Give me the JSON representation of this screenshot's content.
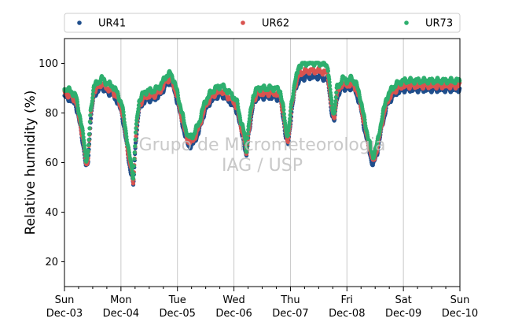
{
  "chart_data": {
    "type": "scatter",
    "title": "",
    "xlabel": "",
    "ylabel": "Relative humidity (%)",
    "ylim": [
      10,
      110
    ],
    "xlim": [
      0,
      7
    ],
    "x_unit": "days from Sun Dec-03 00:00",
    "yticks": [
      20,
      40,
      60,
      80,
      100
    ],
    "xticks": [
      {
        "day": "Sun",
        "date": "Dec-03"
      },
      {
        "day": "Mon",
        "date": "Dec-04"
      },
      {
        "day": "Tue",
        "date": "Dec-05"
      },
      {
        "day": "Wed",
        "date": "Dec-06"
      },
      {
        "day": "Thu",
        "date": "Dec-07"
      },
      {
        "day": "Fri",
        "date": "Dec-08"
      },
      {
        "day": "Sat",
        "date": "Dec-09"
      },
      {
        "day": "Sun",
        "date": "Dec-10"
      }
    ],
    "grid": "vertical at day boundaries",
    "legend_position": "top, horizontal above plot",
    "watermark": [
      "Grupo de Micrometeorologia",
      "IAG / USP"
    ],
    "base_curve": [
      [
        0.0,
        88
      ],
      [
        0.1,
        87
      ],
      [
        0.2,
        85
      ],
      [
        0.28,
        76
      ],
      [
        0.35,
        66
      ],
      [
        0.38,
        59
      ],
      [
        0.42,
        62
      ],
      [
        0.46,
        78
      ],
      [
        0.52,
        89
      ],
      [
        0.58,
        90
      ],
      [
        0.66,
        92
      ],
      [
        0.75,
        90
      ],
      [
        0.85,
        89
      ],
      [
        0.94,
        86
      ],
      [
        1.02,
        81
      ],
      [
        1.08,
        72
      ],
      [
        1.14,
        62
      ],
      [
        1.2,
        55
      ],
      [
        1.22,
        52
      ],
      [
        1.26,
        70
      ],
      [
        1.32,
        83
      ],
      [
        1.4,
        86
      ],
      [
        1.48,
        87
      ],
      [
        1.58,
        87
      ],
      [
        1.7,
        89
      ],
      [
        1.8,
        93
      ],
      [
        1.88,
        94
      ],
      [
        1.94,
        91
      ],
      [
        2.0,
        86
      ],
      [
        2.06,
        80
      ],
      [
        2.14,
        72
      ],
      [
        2.2,
        68
      ],
      [
        2.28,
        69
      ],
      [
        2.38,
        74
      ],
      [
        2.48,
        82
      ],
      [
        2.58,
        86
      ],
      [
        2.68,
        88
      ],
      [
        2.78,
        89
      ],
      [
        2.88,
        87
      ],
      [
        2.98,
        85
      ],
      [
        3.06,
        82
      ],
      [
        3.12,
        75
      ],
      [
        3.18,
        70
      ],
      [
        3.22,
        63
      ],
      [
        3.26,
        73
      ],
      [
        3.34,
        85
      ],
      [
        3.42,
        88
      ],
      [
        3.52,
        88
      ],
      [
        3.62,
        88
      ],
      [
        3.72,
        88
      ],
      [
        3.82,
        87
      ],
      [
        3.88,
        79
      ],
      [
        3.92,
        71
      ],
      [
        3.96,
        69
      ],
      [
        4.02,
        82
      ],
      [
        4.08,
        91
      ],
      [
        4.16,
        96
      ],
      [
        4.3,
        97
      ],
      [
        4.5,
        97
      ],
      [
        4.66,
        96
      ],
      [
        4.7,
        88
      ],
      [
        4.74,
        80
      ],
      [
        4.78,
        78
      ],
      [
        4.82,
        88
      ],
      [
        4.86,
        89
      ],
      [
        4.92,
        92
      ],
      [
        5.0,
        91
      ],
      [
        5.08,
        92
      ],
      [
        5.16,
        90
      ],
      [
        5.24,
        84
      ],
      [
        5.32,
        74
      ],
      [
        5.4,
        66
      ],
      [
        5.46,
        60
      ],
      [
        5.54,
        66
      ],
      [
        5.62,
        76
      ],
      [
        5.7,
        84
      ],
      [
        5.8,
        88
      ],
      [
        5.9,
        90
      ],
      [
        6.0,
        91
      ]
    ],
    "series": [
      {
        "name": "UR41",
        "color": "#1f4e8c",
        "offset": -1.5
      },
      {
        "name": "UR62",
        "color": "#d9534f",
        "offset": 0.0
      },
      {
        "name": "UR73",
        "color": "#2eaf6e",
        "offset": 2.0
      }
    ]
  }
}
